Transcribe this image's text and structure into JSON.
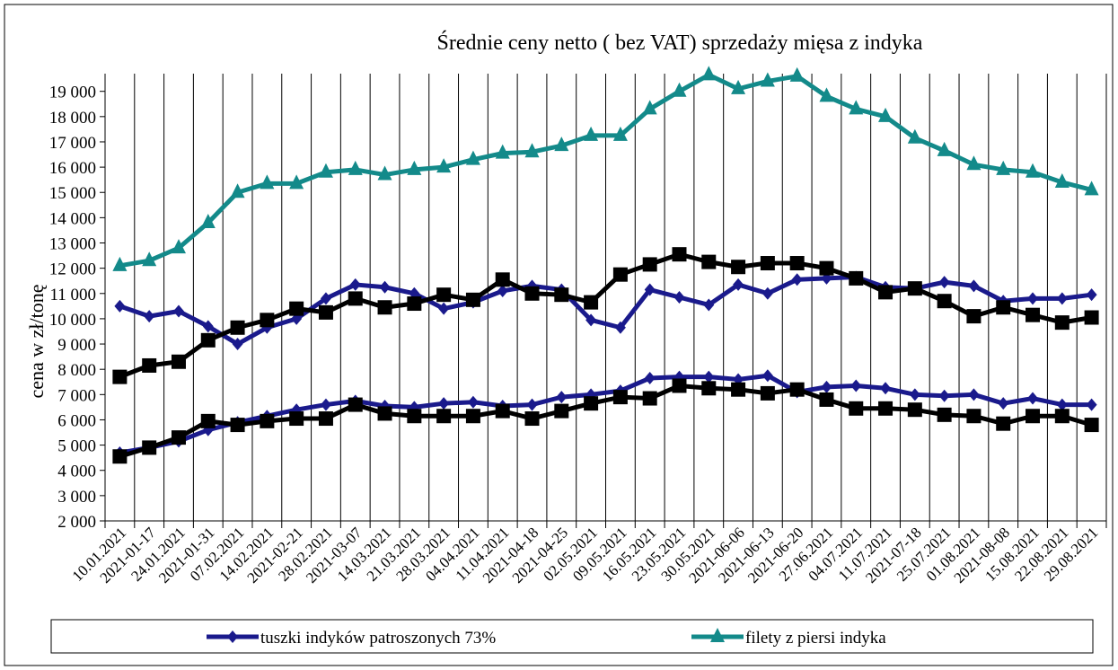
{
  "chart_data": {
    "type": "line",
    "title": "Średnie ceny netto ( bez VAT) sprzedaży mięsa z indyka",
    "y_label": "cena w zł/tonę",
    "categories": [
      "10.01.2021",
      "2021-01-17",
      "24.01.2021",
      "2021-01-31",
      "07.02.2021",
      "14.02.2021",
      "2021-02-21",
      "28.02.2021",
      "2021-03-07",
      "14.03.2021",
      "21.03.2021",
      "28.03.2021",
      "04.04.2021",
      "11.04.2021",
      "2021-04-18",
      "2021-04-25",
      "02.05.2021",
      "09.05.2021",
      "16.05.2021",
      "23.05.2021",
      "30.05.2021",
      "2021-06-06",
      "2021-06-13",
      "2021-06-20",
      "27.06.2021",
      "04.07.2021",
      "11.07.2021",
      "2021-07-18",
      "25.07.2021",
      "01.08.2021",
      "2021-08-08",
      "15.08.2021",
      "22.08.2021",
      "29.08.2021"
    ],
    "series": [
      {
        "name": "tuszki indyków patroszonych 73%",
        "color": "#1a1a8c",
        "marker": "diamond",
        "values": [
          10500,
          10100,
          10300,
          9700,
          9000,
          9650,
          10000,
          10800,
          11350,
          11250,
          11000,
          10400,
          10650,
          11100,
          11300,
          11150,
          9950,
          9650,
          11150,
          10850,
          10550,
          11350,
          11000,
          11550,
          11600,
          11650,
          11250,
          11200,
          11450,
          11300,
          10700,
          10800,
          10800,
          10950
        ]
      },
      {
        "name": "filety z piersi indyka",
        "color": "#138a8a",
        "marker": "triangle",
        "values": [
          12100,
          12300,
          12800,
          13800,
          15000,
          15350,
          15350,
          15800,
          15900,
          15700,
          15900,
          16000,
          16300,
          16550,
          16600,
          16850,
          17250,
          17250,
          18300,
          19000,
          19650,
          19100,
          19400,
          19600,
          18800,
          18300,
          18000,
          17150,
          16650,
          16100,
          15900,
          15800,
          15400,
          15100
        ]
      },
      {
        "color": "#000000",
        "marker": "square",
        "values": [
          7700,
          8150,
          8300,
          9150,
          9650,
          9950,
          10400,
          10250,
          10800,
          10450,
          10600,
          10950,
          10750,
          11550,
          11000,
          10950,
          10650,
          11750,
          12150,
          12550,
          12250,
          12050,
          12200,
          12200,
          12000,
          11600,
          11050,
          11200,
          10700,
          10100,
          10450,
          10150,
          9850,
          10050
        ]
      },
      {
        "color": "#1a1a8c",
        "marker": "diamond",
        "values": [
          4700,
          4900,
          5150,
          5600,
          5900,
          6150,
          6400,
          6600,
          6750,
          6550,
          6500,
          6650,
          6700,
          6550,
          6600,
          6900,
          7000,
          7150,
          7650,
          7700,
          7700,
          7600,
          7750,
          7100,
          7300,
          7350,
          7250,
          7000,
          6950,
          7000,
          6650,
          6850,
          6600,
          6600
        ]
      },
      {
        "color": "#000000",
        "marker": "square",
        "values": [
          4550,
          4900,
          5300,
          5950,
          5800,
          5950,
          6050,
          6050,
          6600,
          6250,
          6150,
          6150,
          6150,
          6350,
          6050,
          6350,
          6650,
          6900,
          6850,
          7350,
          7250,
          7200,
          7050,
          7200,
          6800,
          6450,
          6450,
          6400,
          6200,
          6150,
          5850,
          6150,
          6150,
          5800
        ]
      }
    ],
    "ylim": [
      2000,
      19700
    ],
    "yticks": [
      {
        "value": 2000,
        "label": "2 000"
      },
      {
        "value": 3000,
        "label": "3 000"
      },
      {
        "value": 4000,
        "label": "4 000"
      },
      {
        "value": 5000,
        "label": "5 000"
      },
      {
        "value": 6000,
        "label": "6 000"
      },
      {
        "value": 7000,
        "label": "7 000"
      },
      {
        "value": 8000,
        "label": "8 000"
      },
      {
        "value": 9000,
        "label": "9 000"
      },
      {
        "value": 10000,
        "label": "10 000"
      },
      {
        "value": 11000,
        "label": "11 000"
      },
      {
        "value": 12000,
        "label": "12 000"
      },
      {
        "value": 13000,
        "label": "13 000"
      },
      {
        "value": 14000,
        "label": "14 000"
      },
      {
        "value": 15000,
        "label": "15 000"
      },
      {
        "value": 16000,
        "label": "16 000"
      },
      {
        "value": 17000,
        "label": "17 000"
      },
      {
        "value": 18000,
        "label": "18 000"
      },
      {
        "value": 19000,
        "label": "19 000"
      }
    ],
    "legend": "bottom"
  }
}
